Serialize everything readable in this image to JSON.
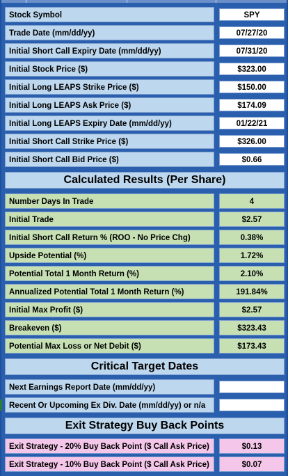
{
  "inputs": [
    {
      "label": "Stock Symbol",
      "value": "SPY"
    },
    {
      "label": "Trade Date  (mm/dd/yy)",
      "value": "07/27/20"
    },
    {
      "label": "Initial Short Call Expiry Date  (mm/dd/yy)",
      "value": "07/31/20"
    },
    {
      "label": "Initial Stock Price ($)",
      "value": "$323.00"
    },
    {
      "label": "Initial Long LEAPS Strike Price ($)",
      "value": "$150.00"
    },
    {
      "label": "Initial Long LEAPS Ask Price ($)",
      "value": "$174.09"
    },
    {
      "label": "Initial Long LEAPS Expiry Date (mm/dd/yy)",
      "value": "01/22/21"
    },
    {
      "label": "Initial Short Call Strike Price ($)",
      "value": "$326.00"
    },
    {
      "label": "Initial Short Call Bid Price ($)",
      "value": "$0.66"
    }
  ],
  "results_title": "Calculated Results (Per Share)",
  "results": [
    {
      "label": "Number Days In Trade",
      "value": "4"
    },
    {
      "label": "Initial Trade",
      "value": "$2.57"
    },
    {
      "label": "Initial Short Call Return % (ROO - No Price Chg)",
      "value": "0.38%"
    },
    {
      "label": "Upside Potential (%)",
      "value": "1.72%"
    },
    {
      "label": "Potential Total 1 Month Return (%)",
      "value": "2.10%"
    },
    {
      "label": "Annualized Potential Total 1 Month Return (%)",
      "value": "191.84%"
    },
    {
      "label": "Initial Max Profit ($)",
      "value": "$2.57"
    },
    {
      "label": "Breakeven ($)",
      "value": "$323.43"
    },
    {
      "label": "Potential Max Loss or Net Debit ($)",
      "value": "$173.43"
    }
  ],
  "dates_title": "Critical Target Dates",
  "dates": [
    {
      "label": "Next Earnings Report Date  (mm/dd/yy)",
      "value": ""
    },
    {
      "label": "Recent Or Upcoming Ex Div. Date (mm/dd/yy) or n/a",
      "value": ""
    }
  ],
  "exit_title": "Exit Strategy Buy Back Points",
  "exit": [
    {
      "label": "Exit Strategy - 20% Buy Back Point ($ Call Ask Price)",
      "value": "$0.13"
    },
    {
      "label": "Exit Strategy - 10% Buy Back Point ($ Call Ask Price)",
      "value": "$0.07"
    }
  ],
  "colors": {
    "background": "#2a5fae",
    "input_label": "#bdd7ee",
    "result_label": "#c6e0b4",
    "exit_label": "#f4c6e9",
    "value_cell": "#ffffff"
  }
}
